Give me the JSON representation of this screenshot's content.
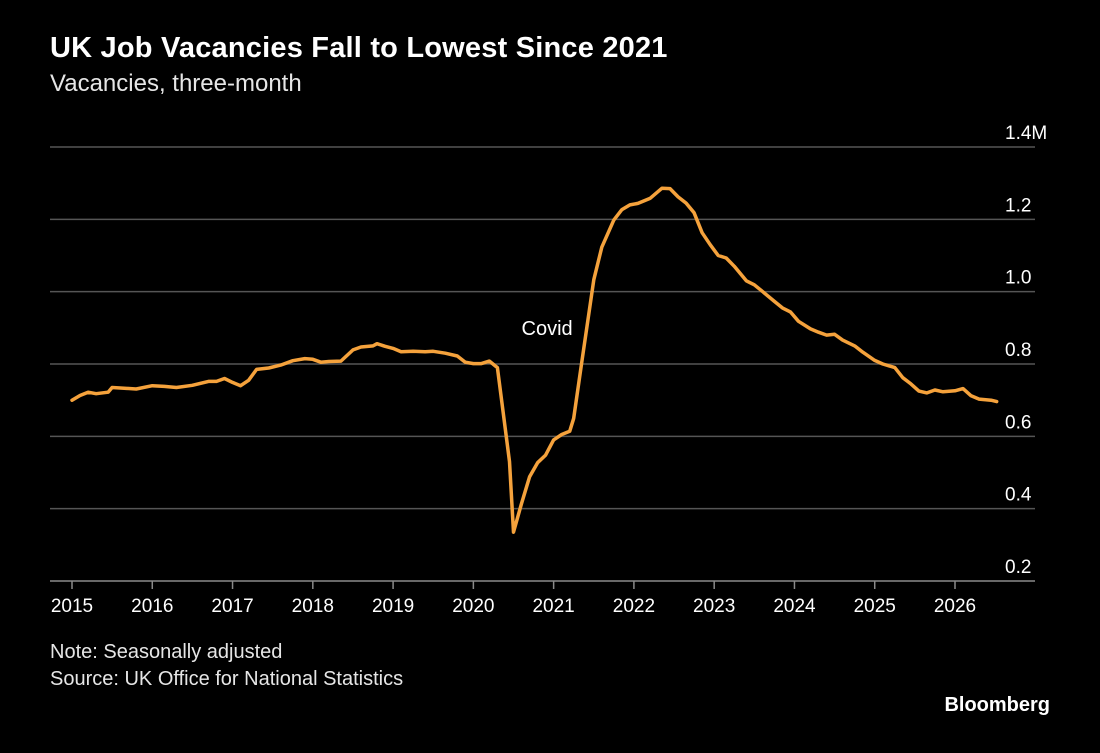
{
  "title": "UK Job Vacancies Fall to Lowest Since 2021",
  "subtitle": "Vacancies, three-month",
  "note": "Note: Seasonally adjusted",
  "source": "Source: UK Office for National Statistics",
  "logo": "Bloomberg",
  "colors": {
    "background": "#000000",
    "line": "#f5a23c",
    "grid": "#555555",
    "text": "#ffffff"
  },
  "chart_data": {
    "type": "line",
    "title": "UK Job Vacancies Fall to Lowest Since 2021",
    "subtitle": "Vacancies, three-month",
    "ylim": [
      0.2,
      1.4
    ],
    "y_unit": "M",
    "yticks": [
      0.2,
      0.4,
      0.6,
      0.8,
      1.0,
      1.2,
      1.4
    ],
    "ytick_labels": [
      "0.2",
      "0.4",
      "0.6",
      "0.8",
      "1.0",
      "1.2",
      "1.4M"
    ],
    "xlim": [
      2015,
      2026.6
    ],
    "xticks": [
      2015,
      2016,
      2017,
      2018,
      2019,
      2020,
      2021,
      2022,
      2023,
      2024,
      2025,
      2026
    ],
    "xtick_labels": [
      "2015",
      "2016",
      "2017",
      "2018",
      "2019",
      "2020",
      "2021",
      "2022",
      "2023",
      "2024",
      "2025",
      "2026"
    ],
    "grid": true,
    "annotations": [
      {
        "text": "Covid",
        "x": 2020.6,
        "y": 0.88
      }
    ],
    "series": [
      {
        "color": "#f5a23c",
        "x": [
          2015.0,
          2015.1,
          2015.2,
          2015.3,
          2015.45,
          2015.5,
          2015.65,
          2015.8,
          2016.0,
          2016.15,
          2016.3,
          2016.5,
          2016.7,
          2016.8,
          2016.9,
          2017.0,
          2017.1,
          2017.2,
          2017.3,
          2017.45,
          2017.6,
          2017.75,
          2017.9,
          2018.0,
          2018.1,
          2018.2,
          2018.35,
          2018.5,
          2018.6,
          2018.75,
          2018.8,
          2018.9,
          2019.0,
          2019.1,
          2019.25,
          2019.4,
          2019.5,
          2019.65,
          2019.8,
          2019.9,
          2020.0,
          2020.1,
          2020.2,
          2020.3,
          2020.45,
          2020.5,
          2020.6,
          2020.7,
          2020.8,
          2020.9,
          2021.0,
          2021.1,
          2021.2,
          2021.25,
          2021.35,
          2021.5,
          2021.6,
          2021.75,
          2021.85,
          2021.95,
          2022.05,
          2022.2,
          2022.35,
          2022.45,
          2022.55,
          2022.65,
          2022.75,
          2022.85,
          2022.95,
          2023.05,
          2023.15,
          2023.25,
          2023.4,
          2023.5,
          2023.6,
          2023.75,
          2023.85,
          2023.95,
          2024.05,
          2024.2,
          2024.3,
          2024.4,
          2024.5,
          2024.6,
          2024.75,
          2024.85,
          2025.0,
          2025.1,
          2025.25,
          2025.35,
          2025.45,
          2025.55,
          2025.65,
          2025.75,
          2025.85,
          2026.0,
          2026.1,
          2026.2,
          2026.3,
          2026.45,
          2026.52
        ],
        "y": [
          0.7,
          0.713,
          0.722,
          0.718,
          0.722,
          0.735,
          0.733,
          0.731,
          0.74,
          0.738,
          0.735,
          0.741,
          0.752,
          0.752,
          0.76,
          0.749,
          0.74,
          0.755,
          0.785,
          0.789,
          0.797,
          0.809,
          0.815,
          0.813,
          0.805,
          0.807,
          0.808,
          0.839,
          0.847,
          0.85,
          0.856,
          0.849,
          0.843,
          0.834,
          0.835,
          0.834,
          0.835,
          0.83,
          0.822,
          0.805,
          0.801,
          0.801,
          0.808,
          0.79,
          0.53,
          0.335,
          0.414,
          0.488,
          0.527,
          0.548,
          0.59,
          0.605,
          0.614,
          0.65,
          0.804,
          1.033,
          1.123,
          1.198,
          1.227,
          1.24,
          1.244,
          1.258,
          1.286,
          1.285,
          1.262,
          1.245,
          1.218,
          1.163,
          1.13,
          1.1,
          1.093,
          1.07,
          1.03,
          1.019,
          1.001,
          0.973,
          0.955,
          0.944,
          0.918,
          0.897,
          0.888,
          0.88,
          0.882,
          0.866,
          0.85,
          0.833,
          0.81,
          0.8,
          0.79,
          0.762,
          0.745,
          0.725,
          0.72,
          0.728,
          0.723,
          0.726,
          0.732,
          0.712,
          0.703,
          0.7,
          0.696
        ]
      }
    ]
  }
}
